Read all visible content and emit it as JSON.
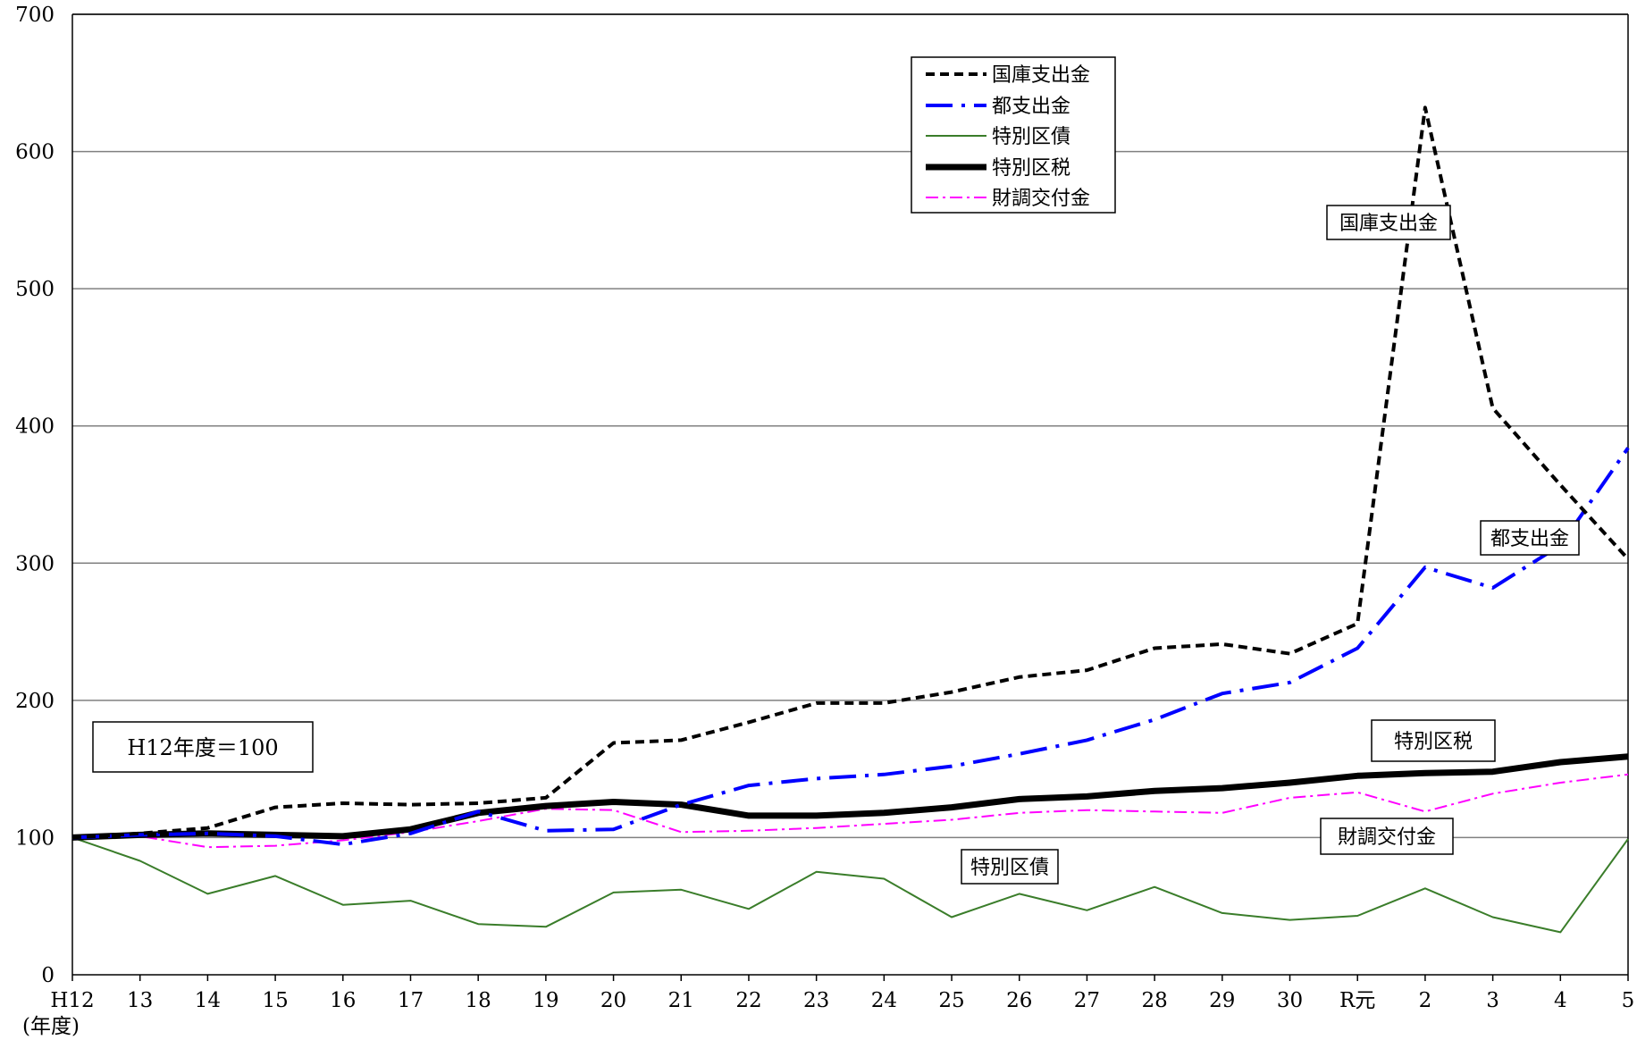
{
  "chart_data": {
    "type": "line",
    "categories": [
      "H12",
      "13",
      "14",
      "15",
      "16",
      "17",
      "18",
      "19",
      "20",
      "21",
      "22",
      "23",
      "24",
      "25",
      "26",
      "27",
      "28",
      "29",
      "30",
      "R元",
      "2",
      "3",
      "4",
      "5"
    ],
    "xlabel": "(年度)",
    "ylim": [
      0,
      700
    ],
    "yticks": [
      "0",
      "100",
      "200",
      "300",
      "400",
      "500",
      "600",
      "700"
    ],
    "grid": true,
    "legend_position": "top-center",
    "series": [
      {
        "name": "国庫支出金",
        "color": "#000000",
        "style": "dashed",
        "values": [
          100,
          103,
          107,
          122,
          125,
          124,
          125,
          129,
          169,
          171,
          184,
          198,
          198,
          206,
          217,
          222,
          238,
          241,
          234,
          256,
          632,
          413,
          357,
          303
        ]
      },
      {
        "name": "都支出金",
        "color": "#0000ff",
        "style": "dash-dot",
        "values": [
          100,
          102,
          103,
          101,
          95,
          103,
          119,
          105,
          106,
          124,
          138,
          143,
          146,
          152,
          161,
          171,
          186,
          205,
          213,
          238,
          297,
          282,
          313,
          384
        ]
      },
      {
        "name": "特別区債",
        "color": "#3a7d2a",
        "style": "solid-thin",
        "values": [
          100,
          83,
          59,
          72,
          51,
          54,
          37,
          35,
          60,
          62,
          48,
          75,
          70,
          42,
          59,
          47,
          64,
          45,
          40,
          43,
          63,
          42,
          31,
          99
        ]
      },
      {
        "name": "特別区税",
        "color": "#000000",
        "style": "solid-thick",
        "values": [
          100,
          102,
          103,
          102,
          101,
          106,
          118,
          123,
          126,
          124,
          116,
          116,
          118,
          122,
          128,
          130,
          134,
          136,
          140,
          145,
          147,
          148,
          155,
          159
        ]
      },
      {
        "name": "財調交付金",
        "color": "#ff00ff",
        "style": "dash-dot-thin",
        "values": [
          100,
          101,
          93,
          94,
          98,
          104,
          112,
          121,
          120,
          104,
          105,
          107,
          110,
          113,
          118,
          120,
          119,
          118,
          129,
          133,
          119,
          132,
          140,
          146
        ]
      }
    ],
    "base_note": "H12年度＝100",
    "annotations": [
      "国庫支出金",
      "都支出金",
      "特別区税",
      "財調交付金",
      "特別区債"
    ]
  }
}
